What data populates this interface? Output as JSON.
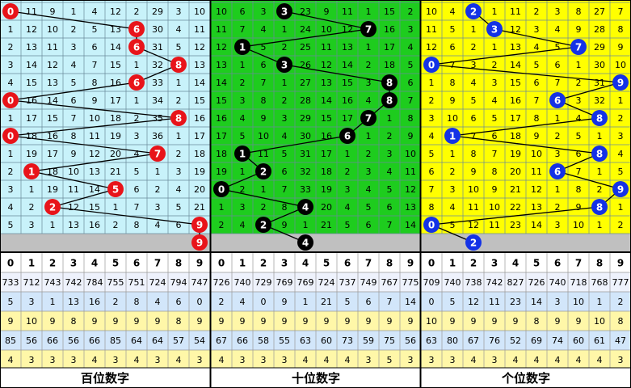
{
  "panels": [
    {
      "label": "百位数字",
      "background": "#c8f2fa",
      "ball_color": "#e8141a",
      "headers": [
        "0",
        "1",
        "2",
        "3",
        "4",
        "5",
        "6",
        "7",
        "8",
        "9"
      ],
      "rows": [
        {
          "cells": [
            null,
            11,
            9,
            1,
            4,
            12,
            2,
            29,
            3,
            10
          ],
          "hit": 0
        },
        {
          "cells": [
            1,
            12,
            10,
            2,
            5,
            13,
            null,
            30,
            4,
            11
          ],
          "hit": 6
        },
        {
          "cells": [
            2,
            13,
            11,
            3,
            6,
            14,
            null,
            31,
            5,
            12
          ],
          "hit": 6
        },
        {
          "cells": [
            3,
            14,
            12,
            4,
            7,
            15,
            1,
            32,
            null,
            13
          ],
          "hit": 8
        },
        {
          "cells": [
            4,
            15,
            13,
            5,
            8,
            16,
            null,
            33,
            1,
            14
          ],
          "hit": 6
        },
        {
          "cells": [
            null,
            16,
            14,
            6,
            9,
            17,
            1,
            34,
            2,
            15
          ],
          "hit": 0
        },
        {
          "cells": [
            1,
            17,
            15,
            7,
            10,
            18,
            2,
            35,
            null,
            16
          ],
          "hit": 8
        },
        {
          "cells": [
            null,
            18,
            16,
            8,
            11,
            19,
            3,
            36,
            1,
            17
          ],
          "hit": 0
        },
        {
          "cells": [
            1,
            19,
            17,
            9,
            12,
            20,
            4,
            null,
            2,
            18
          ],
          "hit": 7
        },
        {
          "cells": [
            2,
            null,
            18,
            10,
            13,
            21,
            5,
            1,
            3,
            19
          ],
          "hit": 1
        },
        {
          "cells": [
            3,
            1,
            19,
            11,
            14,
            null,
            6,
            2,
            4,
            20
          ],
          "hit": 5
        },
        {
          "cells": [
            4,
            2,
            null,
            12,
            15,
            1,
            7,
            3,
            5,
            21
          ],
          "hit": 2
        },
        {
          "cells": [
            5,
            3,
            1,
            13,
            16,
            2,
            8,
            4,
            6,
            null
          ],
          "hit": 9
        }
      ],
      "next": 9,
      "stats": [
        [
          733,
          712,
          743,
          742,
          784,
          755,
          751,
          724,
          794,
          747
        ],
        [
          5,
          3,
          1,
          13,
          16,
          2,
          8,
          4,
          6,
          0
        ],
        [
          9,
          10,
          9,
          8,
          9,
          9,
          9,
          9,
          8,
          9
        ],
        [
          85,
          56,
          66,
          56,
          66,
          85,
          64,
          64,
          57,
          54
        ],
        [
          4,
          3,
          3,
          3,
          4,
          3,
          4,
          3,
          4,
          3
        ]
      ]
    },
    {
      "label": "十位数字",
      "background": "#1ecc1e",
      "ball_color": "#000000",
      "headers": [
        "0",
        "1",
        "2",
        "3",
        "4",
        "5",
        "6",
        "7",
        "8",
        "9"
      ],
      "rows": [
        {
          "cells": [
            10,
            6,
            3,
            null,
            23,
            9,
            11,
            1,
            15,
            2
          ],
          "hit": 3
        },
        {
          "cells": [
            11,
            7,
            4,
            1,
            24,
            10,
            12,
            null,
            16,
            3
          ],
          "hit": 7
        },
        {
          "cells": [
            12,
            null,
            5,
            2,
            25,
            11,
            13,
            1,
            17,
            4
          ],
          "hit": 1
        },
        {
          "cells": [
            13,
            1,
            6,
            null,
            26,
            12,
            14,
            2,
            18,
            5
          ],
          "hit": 3
        },
        {
          "cells": [
            14,
            2,
            7,
            1,
            27,
            13,
            15,
            3,
            null,
            6
          ],
          "hit": 8
        },
        {
          "cells": [
            15,
            3,
            8,
            2,
            28,
            14,
            16,
            4,
            null,
            7
          ],
          "hit": 8
        },
        {
          "cells": [
            16,
            4,
            9,
            3,
            29,
            15,
            17,
            null,
            1,
            8
          ],
          "hit": 7
        },
        {
          "cells": [
            17,
            5,
            10,
            4,
            30,
            16,
            null,
            1,
            2,
            9
          ],
          "hit": 6
        },
        {
          "cells": [
            18,
            null,
            11,
            5,
            31,
            17,
            1,
            2,
            3,
            10
          ],
          "hit": 1
        },
        {
          "cells": [
            19,
            1,
            null,
            6,
            32,
            18,
            2,
            3,
            4,
            11
          ],
          "hit": 2
        },
        {
          "cells": [
            null,
            2,
            1,
            7,
            33,
            19,
            3,
            4,
            5,
            12
          ],
          "hit": 0
        },
        {
          "cells": [
            1,
            3,
            2,
            8,
            null,
            20,
            4,
            5,
            6,
            13
          ],
          "hit": 4
        },
        {
          "cells": [
            2,
            4,
            null,
            9,
            1,
            21,
            5,
            6,
            7,
            14
          ],
          "hit": 2
        }
      ],
      "next": 4,
      "stats": [
        [
          726,
          740,
          729,
          769,
          769,
          724,
          737,
          749,
          767,
          775
        ],
        [
          2,
          4,
          0,
          9,
          1,
          21,
          5,
          6,
          7,
          14
        ],
        [
          9,
          9,
          9,
          9,
          9,
          9,
          9,
          9,
          9,
          9
        ],
        [
          67,
          66,
          58,
          55,
          63,
          60,
          73,
          59,
          75,
          56
        ],
        [
          4,
          3,
          3,
          3,
          4,
          4,
          4,
          3,
          5,
          3
        ]
      ]
    },
    {
      "label": "个位数字",
      "background": "#ffff00",
      "ball_color": "#1432e6",
      "headers": [
        "0",
        "1",
        "2",
        "3",
        "4",
        "5",
        "6",
        "7",
        "8",
        "9"
      ],
      "rows": [
        {
          "cells": [
            10,
            4,
            null,
            1,
            11,
            2,
            3,
            8,
            27,
            7
          ],
          "hit": 2
        },
        {
          "cells": [
            11,
            5,
            1,
            null,
            12,
            3,
            4,
            9,
            28,
            8
          ],
          "hit": 3
        },
        {
          "cells": [
            12,
            6,
            2,
            1,
            13,
            4,
            5,
            null,
            29,
            9
          ],
          "hit": 7
        },
        {
          "cells": [
            null,
            7,
            3,
            2,
            14,
            5,
            6,
            1,
            30,
            10
          ],
          "hit": 0
        },
        {
          "cells": [
            1,
            8,
            4,
            3,
            15,
            6,
            7,
            2,
            31,
            null
          ],
          "hit": 9
        },
        {
          "cells": [
            2,
            9,
            5,
            4,
            16,
            7,
            null,
            3,
            32,
            1
          ],
          "hit": 6
        },
        {
          "cells": [
            3,
            10,
            6,
            5,
            17,
            8,
            1,
            4,
            null,
            2
          ],
          "hit": 8
        },
        {
          "cells": [
            4,
            null,
            7,
            6,
            18,
            9,
            2,
            5,
            1,
            3
          ],
          "hit": 1
        },
        {
          "cells": [
            5,
            1,
            8,
            7,
            19,
            10,
            3,
            6,
            null,
            4
          ],
          "hit": 8
        },
        {
          "cells": [
            6,
            2,
            9,
            8,
            20,
            11,
            null,
            7,
            1,
            5
          ],
          "hit": 6
        },
        {
          "cells": [
            7,
            3,
            10,
            9,
            21,
            12,
            1,
            8,
            2,
            null
          ],
          "hit": 9
        },
        {
          "cells": [
            8,
            4,
            11,
            10,
            22,
            13,
            2,
            9,
            null,
            1
          ],
          "hit": 8
        },
        {
          "cells": [
            null,
            5,
            12,
            11,
            23,
            14,
            3,
            10,
            1,
            2
          ],
          "hit": 0
        }
      ],
      "next": 2,
      "stats": [
        [
          709,
          740,
          738,
          742,
          827,
          726,
          740,
          718,
          768,
          777
        ],
        [
          0,
          5,
          12,
          11,
          23,
          14,
          3,
          10,
          1,
          2
        ],
        [
          10,
          9,
          9,
          9,
          9,
          8,
          9,
          9,
          10,
          8
        ],
        [
          63,
          80,
          67,
          76,
          52,
          69,
          74,
          60,
          61,
          47
        ],
        [
          3,
          3,
          4,
          3,
          4,
          4,
          4,
          4,
          4,
          3
        ]
      ]
    }
  ],
  "stat_colors": [
    "#eef2fc",
    "#d2e6fa",
    "#fff7a8",
    "#d2e6fa",
    "#fff7a8"
  ]
}
